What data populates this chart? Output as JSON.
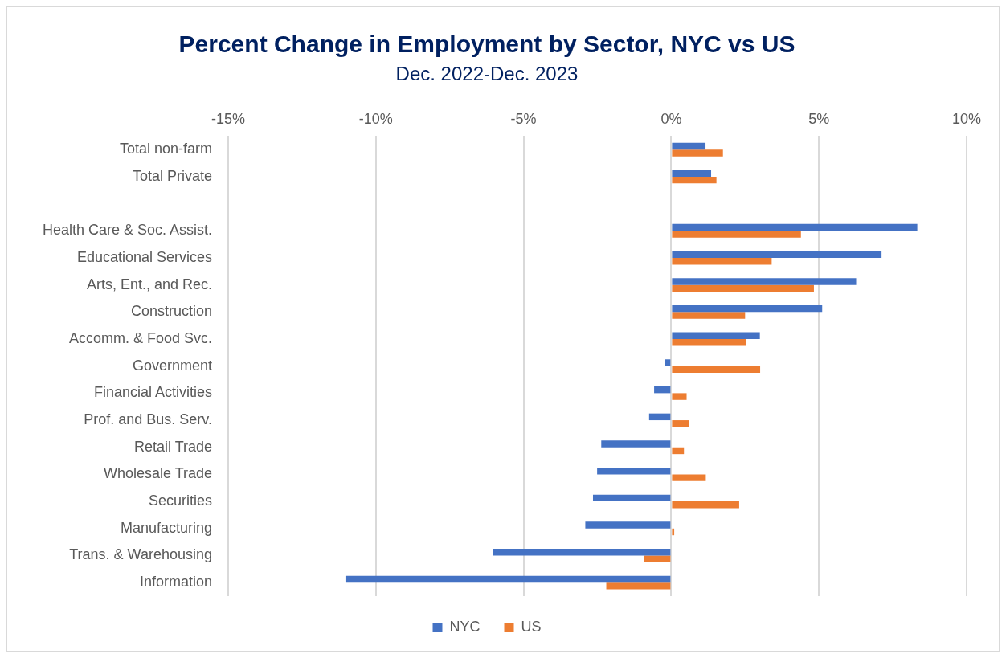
{
  "chart_data": {
    "type": "bar",
    "orientation": "horizontal",
    "title": "Percent Change in Employment by Sector, NYC vs US",
    "subtitle": "Dec. 2022-Dec. 2023",
    "categories": [
      "Total non-farm",
      "Total Private",
      null,
      "Health Care & Soc. Assist.",
      "Educational Services",
      "Arts, Ent., and Rec.",
      "Construction",
      "Accomm. & Food Svc.",
      "Government",
      "Financial Activities",
      "Prof. and Bus. Serv.",
      "Retail Trade",
      "Wholesale Trade",
      "Securities",
      "Manufacturing",
      "Trans. & Warehousing",
      "Information"
    ],
    "series": [
      {
        "name": "NYC",
        "color": "#4472c4",
        "values": [
          1.16,
          1.35,
          null,
          8.33,
          7.12,
          6.26,
          5.11,
          3.0,
          -0.21,
          -0.58,
          -0.75,
          -2.37,
          -2.51,
          -2.65,
          -2.91,
          -6.03,
          -11.03
        ]
      },
      {
        "name": "US",
        "color": "#ed7d31",
        "values": [
          1.75,
          1.53,
          null,
          4.39,
          3.4,
          4.83,
          2.5,
          2.52,
          3.01,
          0.52,
          0.59,
          0.43,
          1.17,
          2.3,
          0.1,
          -0.92,
          -2.2
        ]
      }
    ],
    "xlim": [
      -15,
      10
    ],
    "xticks": [
      {
        "value": -15,
        "label": "-15%"
      },
      {
        "value": -10,
        "label": "-10%"
      },
      {
        "value": -5,
        "label": "-5%"
      },
      {
        "value": 0,
        "label": "0%"
      },
      {
        "value": 5,
        "label": "5%"
      },
      {
        "value": 10,
        "label": "10%"
      }
    ],
    "grid": "x",
    "legend": "bottom"
  }
}
